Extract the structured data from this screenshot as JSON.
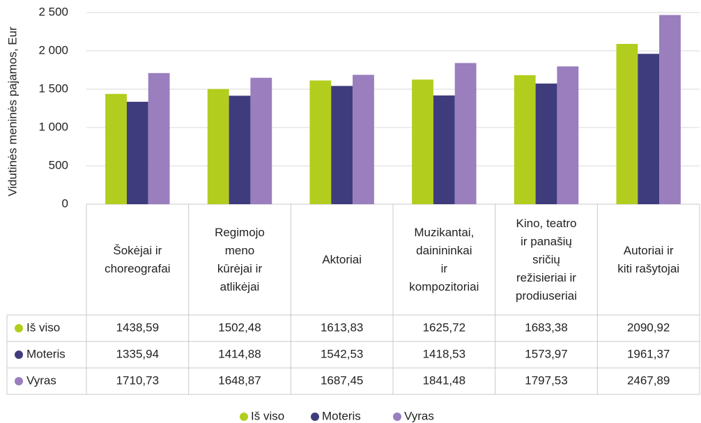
{
  "chart_data": {
    "type": "bar",
    "y_label": "Vidutinės meninės pajamos, Eur",
    "categories": [
      "Šokėjai ir\nchoreografai",
      "Regimojo\nmeno\nkūrėjai ir\natlikėjai",
      "Aktoriai",
      "Muzikantai,\ndainininkai\nir\nkompozitoriai",
      "Kino, teatro\nir panašių\nsričių\nrežisieriai ir\nprodiuseriai",
      "Autoriai ir\nkiti rašytojai"
    ],
    "series": [
      {
        "name": "Iš viso",
        "color": "#b3cd1e",
        "values": [
          1438.59,
          1502.48,
          1613.83,
          1625.72,
          1683.38,
          2090.92
        ],
        "value_labels": [
          "1438,59",
          "1502,48",
          "1613,83",
          "1625,72",
          "1683,38",
          "2090,92"
        ]
      },
      {
        "name": "Moteris",
        "color": "#3f3c7d",
        "values": [
          1335.94,
          1414.88,
          1542.53,
          1418.53,
          1573.97,
          1961.37
        ],
        "value_labels": [
          "1335,94",
          "1414,88",
          "1542,53",
          "1418,53",
          "1573,97",
          "1961,37"
        ]
      },
      {
        "name": "Vyras",
        "color": "#9a7ebd",
        "values": [
          1710.73,
          1648.87,
          1687.45,
          1841.48,
          1797.53,
          2467.89
        ],
        "value_labels": [
          "1710,73",
          "1648,87",
          "1687,45",
          "1841,48",
          "1797,53",
          "2467,89"
        ]
      }
    ],
    "ylim": [
      0,
      2500
    ],
    "yticks": [
      0,
      500,
      {
        "value": 1000,
        "label": "1 000"
      },
      {
        "value": 1500,
        "label": "1 500"
      },
      {
        "value": 2000,
        "label": "2 000"
      },
      {
        "value": 2500,
        "label": "2 500"
      }
    ],
    "grid": true,
    "legend": "bottom"
  }
}
